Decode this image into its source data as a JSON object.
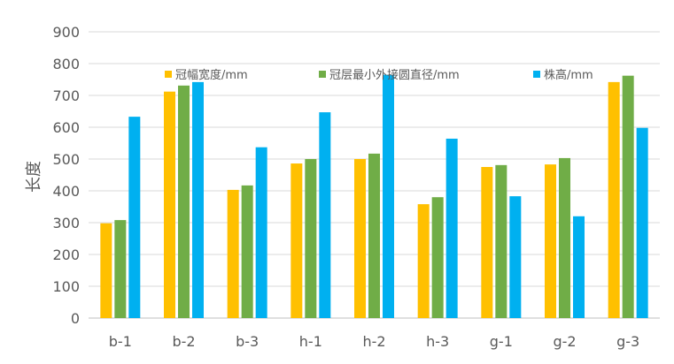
{
  "chart_data": {
    "type": "bar",
    "title": "",
    "xlabel": "",
    "ylabel": "长度",
    "ylim": [
      0,
      900
    ],
    "yticks": [
      0,
      100,
      200,
      300,
      400,
      500,
      600,
      700,
      800,
      900
    ],
    "grid": true,
    "legend": "top",
    "categories": [
      "b-1",
      "b-2",
      "b-3",
      "h-1",
      "h-2",
      "h-3",
      "g-1",
      "g-2",
      "g-3"
    ],
    "series": [
      {
        "name": "冠幅宽度/mm",
        "color": "#FFC000",
        "values": [
          298,
          712,
          403,
          486,
          500,
          358,
          475,
          483,
          742
        ]
      },
      {
        "name": "冠层最小外接圆直径/mm",
        "color": "#70AD47",
        "values": [
          308,
          731,
          417,
          500,
          517,
          380,
          481,
          503,
          762
        ]
      },
      {
        "name": "株高/mm",
        "color": "#00B0F0",
        "values": [
          633,
          742,
          537,
          647,
          765,
          564,
          383,
          320,
          598
        ]
      }
    ]
  }
}
